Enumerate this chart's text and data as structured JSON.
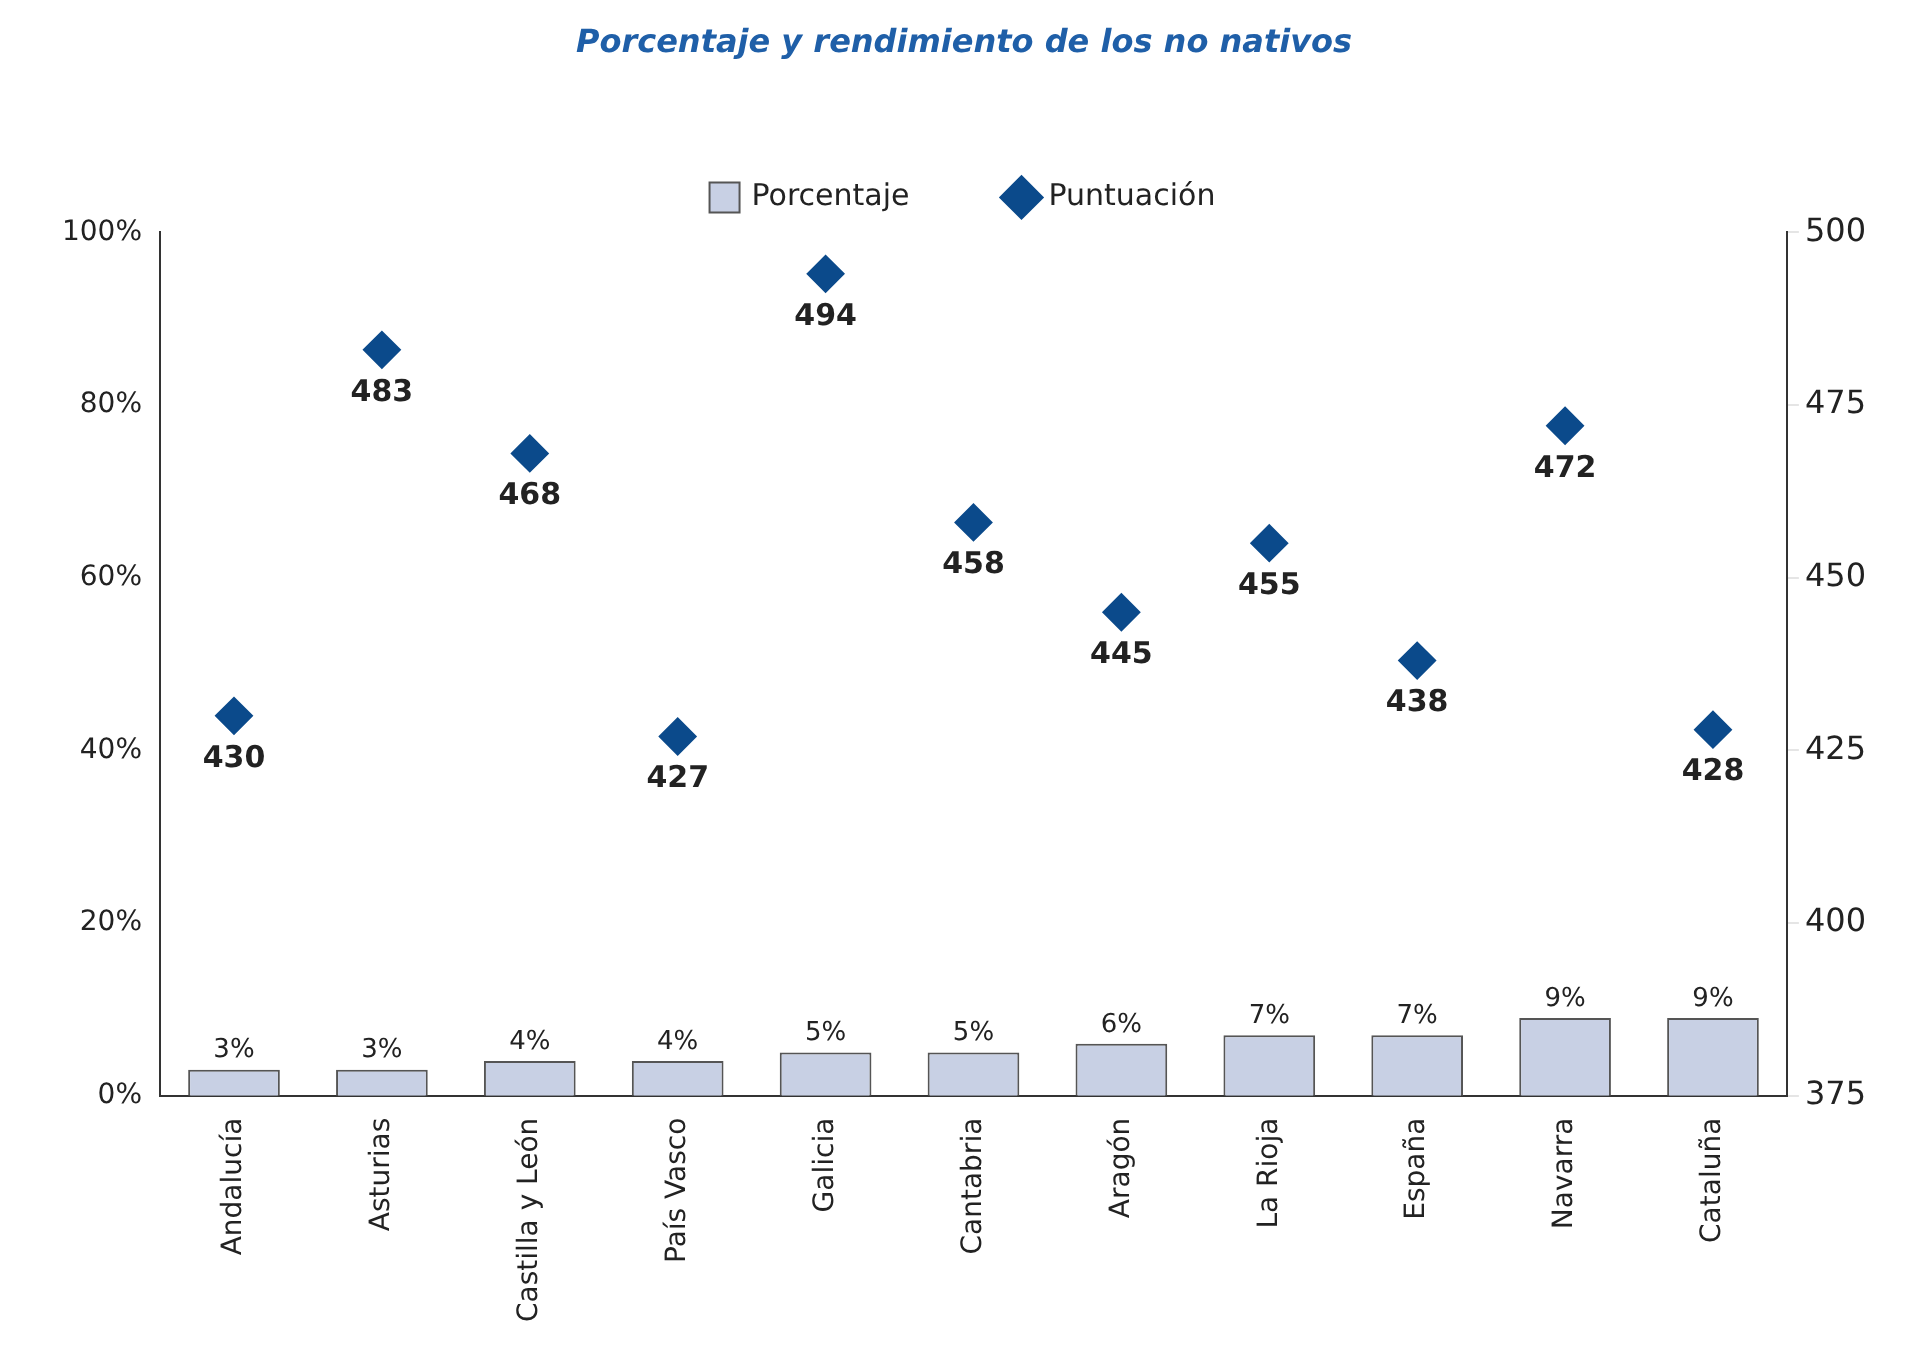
{
  "chart_data": {
    "type": "bar",
    "title": "Porcentaje y rendimiento de los no nativos",
    "categories": [
      "Andalucía",
      "Asturias",
      "Castilla y León",
      "País Vasco",
      "Galicia",
      "Cantabria",
      "Aragón",
      "La Rioja",
      "España",
      "Navarra",
      "Cataluña"
    ],
    "series": [
      {
        "name": "Porcentaje",
        "color": "#c8d0e4",
        "values": [
          3,
          3,
          4,
          4,
          5,
          5,
          6,
          7,
          7,
          9,
          9
        ],
        "value_labels": [
          "3%",
          "3%",
          "4%",
          "4%",
          "5%",
          "5%",
          "6%",
          "7%",
          "7%",
          "9%",
          "9%"
        ]
      },
      {
        "name": "Puntuación",
        "type": "scatter",
        "axis": "y2",
        "color": "#0b4a8b",
        "marker": "diamond",
        "values": [
          430,
          483,
          468,
          427,
          494,
          458,
          445,
          455,
          438,
          472,
          428
        ],
        "value_labels": [
          "430",
          "483",
          "468",
          "427",
          "494",
          "458",
          "445",
          "455",
          "438",
          "472",
          "428"
        ]
      }
    ],
    "ylim": [
      0,
      100
    ],
    "yticks": [
      {
        "value": 0,
        "label": "0%"
      },
      {
        "value": 20,
        "label": "20%"
      },
      {
        "value": 40,
        "label": "40%"
      },
      {
        "value": 60,
        "label": "60%"
      },
      {
        "value": 80,
        "label": "80%"
      },
      {
        "value": 100,
        "label": "100%"
      }
    ],
    "y2lim": [
      375,
      500
    ],
    "y2ticks": [
      375,
      400,
      425,
      450,
      475,
      500
    ],
    "legend": "top",
    "grid": false
  }
}
